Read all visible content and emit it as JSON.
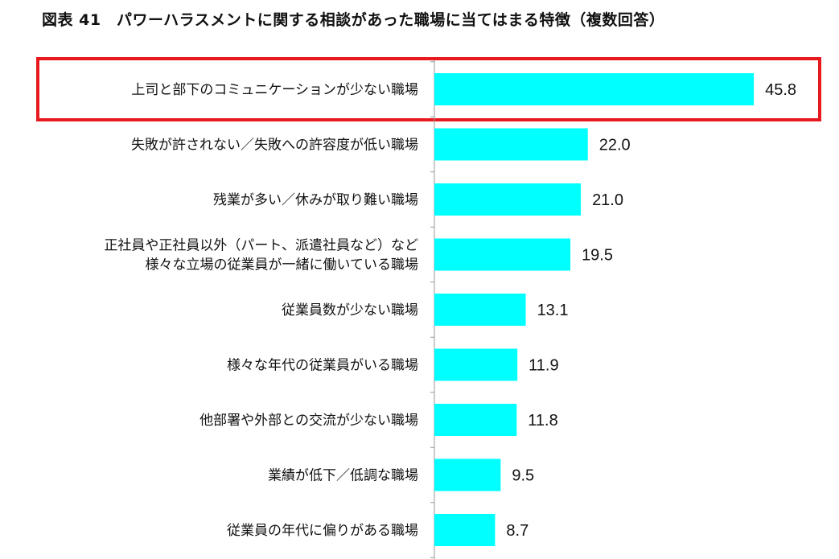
{
  "title": "図表 41　パワーハラスメントに関する相談があった職場に当てはまる特徴（複数回答）",
  "colors": {
    "bar": "#00ffff",
    "highlight_border": "#e8191e",
    "axis": "#999999"
  },
  "highlight": {
    "category_index": 0
  },
  "chart_data": {
    "type": "bar",
    "orientation": "horizontal",
    "title": "図表 41　パワーハラスメントに関する相談があった職場に当てはまる特徴（複数回答）",
    "categories": [
      "上司と部下のコミュニケーションが少ない職場",
      "失敗が許されない／失敗への許容度が低い職場",
      "残業が多い／休みが取り難い職場",
      "正社員や正社員以外（パート、派遣社員など）など\n様々な立場の従業員が一緒に働いている職場",
      "従業員数が少ない職場",
      "様々な年代の従業員がいる職場",
      "他部署や外部との交流が少ない職場",
      "業績が低下／低調な職場",
      "従業員の年代に偏りがある職場"
    ],
    "values": [
      45.8,
      22.0,
      21.0,
      19.5,
      13.1,
      11.9,
      11.8,
      9.5,
      8.7
    ],
    "value_labels": [
      "45.8",
      "22.0",
      "21.0",
      "19.5",
      "13.1",
      "11.9",
      "11.8",
      "9.5",
      "8.7"
    ],
    "xlabel": "",
    "ylabel": "",
    "grid": false,
    "legend": "none"
  }
}
